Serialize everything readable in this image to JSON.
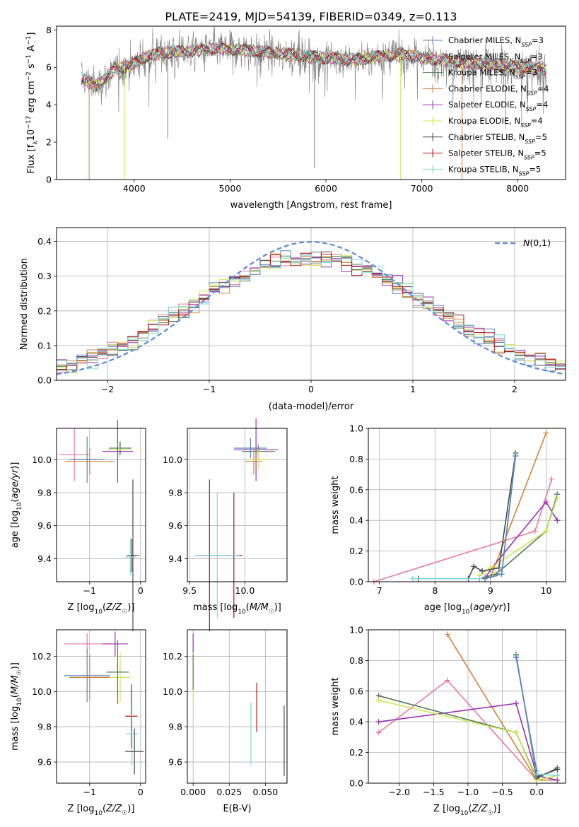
{
  "figure": {
    "title": "PLATE=2419, MJD=54139, FIBERID=0349, z=0.113"
  },
  "colors": {
    "CM": "#5b80be",
    "SM": "#e87b9c",
    "KM": "#4f7d57",
    "CE": "#d6813a",
    "SE": "#9a31b5",
    "KE": "#c9e84f",
    "CS": "#4a4a4a",
    "SS": "#b01515",
    "KS": "#7fd7d7",
    "normal": "#5b8bd6",
    "grid": "#b0b0b0",
    "spectrum": "#7f7f7f"
  },
  "legend_spectrum": [
    {
      "key": "CM",
      "base": "Chabrier MILES, N",
      "sub": "SSP",
      "tail": "=3"
    },
    {
      "key": "SM",
      "base": "Salpeter MILES, N",
      "sub": "SSP",
      "tail": "=3"
    },
    {
      "key": "KM",
      "base": "Kroupa MILES, N",
      "sub": "SSP",
      "tail": "=3"
    },
    {
      "key": "CE",
      "base": "Chabrier ELODIE, N",
      "sub": "SSP",
      "tail": "=4"
    },
    {
      "key": "SE",
      "base": "Salpeter ELODIE, N",
      "sub": "SSP",
      "tail": "=4"
    },
    {
      "key": "KE",
      "base": "Kroupa ELODIE, N",
      "sub": "SSP",
      "tail": "=4"
    },
    {
      "key": "CS",
      "base": "Chabrier STELIB, N",
      "sub": "SSP",
      "tail": "=5"
    },
    {
      "key": "SS",
      "base": "Salpeter STELIB, N",
      "sub": "SSP",
      "tail": "=5"
    },
    {
      "key": "KS",
      "base": "Kroupa STELIB, N",
      "sub": "SSP",
      "tail": "=5"
    }
  ],
  "chart_data": [
    {
      "id": "spectrum",
      "type": "line",
      "xlabel": "wavelength [Angstrom, rest frame]",
      "ylabel": "Flux [f_λ 10^-17 erg cm^-2 s^-1 A^-1]",
      "xlim": [
        3190,
        8500
      ],
      "ylim": [
        0,
        8.2
      ],
      "xticks": [
        4000,
        5000,
        6000,
        7000,
        8000
      ],
      "yticks": [
        0,
        2,
        4,
        6,
        8
      ],
      "data_range": [
        3450,
        8300
      ],
      "continuum": [
        [
          3450,
          5.4
        ],
        [
          3600,
          5.0
        ],
        [
          3700,
          5.4
        ],
        [
          3800,
          5.9
        ],
        [
          3950,
          6.1
        ],
        [
          4100,
          6.5
        ],
        [
          4300,
          6.8
        ],
        [
          4600,
          6.9
        ],
        [
          4900,
          7.0
        ],
        [
          5200,
          6.9
        ],
        [
          5600,
          6.7
        ],
        [
          6000,
          6.5
        ],
        [
          6300,
          6.4
        ],
        [
          6600,
          6.6
        ],
        [
          6800,
          6.7
        ],
        [
          7000,
          6.5
        ],
        [
          7400,
          6.3
        ],
        [
          7800,
          6.1
        ],
        [
          8300,
          5.9
        ]
      ],
      "dips": [
        {
          "x": 3530,
          "y": 0.0,
          "key": "CE"
        },
        {
          "x": 3900,
          "y": 0.0,
          "key": "KE"
        },
        {
          "x": 4350,
          "y": 2.2,
          "key": "spectrum"
        },
        {
          "x": 5880,
          "y": 0.6,
          "key": "spectrum"
        },
        {
          "x": 6780,
          "y": 0.0,
          "key": "KE"
        },
        {
          "x": 7420,
          "y": 0.0,
          "key": "CE"
        }
      ],
      "legend": "upper right"
    },
    {
      "id": "residuals",
      "type": "histogram",
      "xlabel": "(data-model)/error",
      "ylabel": "Normed distribution",
      "xlim": [
        -2.5,
        2.5
      ],
      "ylim": [
        0,
        0.44
      ],
      "xticks": [
        -2,
        -1,
        0,
        1,
        2
      ],
      "yticks": [
        0,
        0.1,
        0.2,
        0.3,
        0.4
      ],
      "bin_width": 0.1,
      "bin_start": -2.5,
      "normal_label": "N(0,1)",
      "normal_mean": 0,
      "normal_sigma": 1,
      "legend": "upper right"
    },
    {
      "id": "age_vs_Z",
      "type": "errorbar",
      "xlabel": "Z [log10(Z/Z☉)]",
      "ylabel": "age [log10(age/yr)]",
      "xlim": [
        -1.65,
        0.1
      ],
      "ylim": [
        9.26,
        10.19
      ],
      "xticks": [
        -1,
        0
      ],
      "yticks": [
        9.4,
        9.6,
        9.8,
        10.0
      ],
      "points": [
        {
          "key": "SM",
          "x": -1.3,
          "y": 10.03,
          "xerr": 0.3,
          "yerr": 0.16
        },
        {
          "key": "CM",
          "x": -1.05,
          "y": 10.0,
          "xerr": 0.35,
          "yerr": 0.14
        },
        {
          "key": "CE",
          "x": -1.0,
          "y": 9.99,
          "xerr": 0.5,
          "yerr": 0.08
        },
        {
          "key": "KM",
          "x": -0.4,
          "y": 10.07,
          "xerr": 0.22,
          "yerr": 0.04
        },
        {
          "key": "KE",
          "x": -0.42,
          "y": 10.06,
          "xerr": 0.24,
          "yerr": 0.05
        },
        {
          "key": "SE",
          "x": -0.45,
          "y": 10.05,
          "xerr": 0.3,
          "yerr": 0.19
        },
        {
          "key": "CS",
          "x": -0.15,
          "y": 9.42,
          "xerr": 0.12,
          "yerr": 0.46
        },
        {
          "key": "SS",
          "x": -0.17,
          "y": 9.42,
          "xerr": 0.06,
          "yerr": 0.1
        },
        {
          "key": "KS",
          "x": -0.2,
          "y": 9.41,
          "xerr": 0.1,
          "yerr": 0.11
        }
      ]
    },
    {
      "id": "age_vs_mass",
      "type": "errorbar",
      "xlabel": "mass [log10(M/M☉)]",
      "ylabel": "",
      "xlim": [
        9.48,
        10.38
      ],
      "ylim": [
        9.26,
        10.19
      ],
      "xticks": [
        9.5,
        10.0
      ],
      "yticks": [
        9.4,
        9.6,
        9.8,
        10.0
      ],
      "points": [
        {
          "key": "SE",
          "x": 10.1,
          "y": 10.06,
          "xerr": 0.2,
          "yerr": 0.19
        },
        {
          "key": "CM",
          "x": 10.05,
          "y": 10.07,
          "xerr": 0.15,
          "yerr": 0.06
        },
        {
          "key": "KM",
          "x": 10.12,
          "y": 10.05,
          "xerr": 0.15,
          "yerr": 0.04
        },
        {
          "key": "CE",
          "x": 10.08,
          "y": 9.99,
          "xerr": 0.08,
          "yerr": 0.08
        },
        {
          "key": "KE",
          "x": 10.12,
          "y": 10.0,
          "xerr": 0.1,
          "yerr": 0.06
        },
        {
          "key": "CS",
          "x": 9.68,
          "y": 9.42,
          "xerr": 0.13,
          "yerr": 0.46
        },
        {
          "key": "SS",
          "x": 9.9,
          "y": 9.42,
          "xerr": 0.08,
          "yerr": 0.38
        },
        {
          "key": "KS",
          "x": 9.75,
          "y": 9.42,
          "xerr": 0.2,
          "yerr": 0.38
        }
      ]
    },
    {
      "id": "mass_weight_vs_age",
      "type": "line",
      "xlabel": "age [log10(age/yr)]",
      "ylabel": "mass weight",
      "xlim": [
        6.8,
        10.35
      ],
      "ylim": [
        0,
        1
      ],
      "xticks": [
        7,
        8,
        9,
        10
      ],
      "yticks": [
        0,
        0.2,
        0.4,
        0.6,
        0.8,
        1.0
      ],
      "series": [
        {
          "key": "CE",
          "points": [
            [
              8.8,
              0.02
            ],
            [
              9.0,
              0.03
            ],
            [
              10.0,
              0.97
            ]
          ]
        },
        {
          "key": "SM",
          "points": [
            [
              6.9,
              0.0
            ],
            [
              9.8,
              0.33
            ],
            [
              10.1,
              0.67
            ]
          ]
        },
        {
          "key": "SE",
          "points": [
            [
              8.9,
              0.02
            ],
            [
              9.0,
              0.08
            ],
            [
              10.0,
              0.52
            ],
            [
              10.2,
              0.4
            ]
          ]
        },
        {
          "key": "KM",
          "points": [
            [
              8.9,
              0.03
            ],
            [
              9.1,
              0.05
            ],
            [
              10.0,
              0.33
            ],
            [
              10.2,
              0.57
            ]
          ]
        },
        {
          "key": "KE",
          "points": [
            [
              8.8,
              0.04
            ],
            [
              9.0,
              0.09
            ],
            [
              10.0,
              0.33
            ],
            [
              10.2,
              0.55
            ]
          ]
        },
        {
          "key": "CS",
          "points": [
            [
              7.7,
              0.02
            ],
            [
              8.6,
              0.02
            ],
            [
              8.7,
              0.1
            ],
            [
              8.85,
              0.07
            ],
            [
              9.15,
              0.09
            ],
            [
              9.45,
              0.84
            ]
          ]
        },
        {
          "key": "KS",
          "points": [
            [
              7.6,
              0.02
            ],
            [
              8.9,
              0.02
            ],
            [
              9.2,
              0.05
            ],
            [
              9.45,
              0.83
            ]
          ]
        },
        {
          "key": "CM",
          "points": [
            [
              8.9,
              0.02
            ],
            [
              9.2,
              0.05
            ],
            [
              9.45,
              0.82
            ]
          ]
        }
      ]
    },
    {
      "id": "mass_vs_Z",
      "type": "errorbar",
      "xlabel": "Z [log10(Z/Z☉)]",
      "ylabel": "mass [log10(M/M☉)]",
      "xlim": [
        -1.65,
        0.1
      ],
      "ylim": [
        9.48,
        10.35
      ],
      "xticks": [
        -1,
        0
      ],
      "yticks": [
        9.6,
        9.8,
        10.0,
        10.2
      ],
      "points": [
        {
          "key": "SM",
          "x": -1.05,
          "y": 10.27,
          "xerr": 0.45,
          "yerr": 0.06
        },
        {
          "key": "SE",
          "x": -0.5,
          "y": 10.27,
          "xerr": 0.25,
          "yerr": 0.07
        },
        {
          "key": "CM",
          "x": -1.05,
          "y": 10.09,
          "xerr": 0.45,
          "yerr": 0.15
        },
        {
          "key": "CE",
          "x": -1.0,
          "y": 10.08,
          "xerr": 0.4,
          "yerr": 0.13
        },
        {
          "key": "KE",
          "x": -0.4,
          "y": 10.08,
          "xerr": 0.2,
          "yerr": 0.14
        },
        {
          "key": "KM",
          "x": -0.45,
          "y": 10.11,
          "xerr": 0.22,
          "yerr": 0.18
        },
        {
          "key": "SS",
          "x": -0.18,
          "y": 9.86,
          "xerr": 0.12,
          "yerr": 0.18
        },
        {
          "key": "KS",
          "x": -0.17,
          "y": 9.76,
          "xerr": 0.12,
          "yerr": 0.18
        },
        {
          "key": "CS",
          "x": -0.12,
          "y": 9.66,
          "xerr": 0.18,
          "yerr": 0.13
        }
      ]
    },
    {
      "id": "mass_vs_EBV",
      "type": "errorbar",
      "xlabel": "E(B-V)",
      "ylabel": "",
      "xlim": [
        -0.004,
        0.065
      ],
      "ylim": [
        9.48,
        10.35
      ],
      "xticks": [
        0.0,
        0.025,
        0.05
      ],
      "xtick_labels": [
        "0.000",
        "0.025",
        "0.050"
      ],
      "yticks": [
        9.6,
        9.8,
        10.0,
        10.2
      ],
      "points": [
        {
          "key": "SE",
          "x": 0.0,
          "y": 10.27,
          "xerr": 0,
          "yerr": 0.06
        },
        {
          "key": "KE",
          "x": 0.0,
          "y": 10.08,
          "xerr": 0,
          "yerr": 0.14
        },
        {
          "key": "KM",
          "x": 0.0,
          "y": 10.11,
          "xerr": 0,
          "yerr": 0.1
        },
        {
          "key": "SS",
          "x": 0.044,
          "y": 9.91,
          "xerr": 0,
          "yerr": 0.14
        },
        {
          "key": "KS",
          "x": 0.04,
          "y": 9.76,
          "xerr": 0,
          "yerr": 0.18
        },
        {
          "key": "CS",
          "x": 0.063,
          "y": 9.72,
          "xerr": 0,
          "yerr": 0.2
        }
      ]
    },
    {
      "id": "mass_weight_vs_Z",
      "type": "line",
      "xlabel": "Z [log10(Z/Z☉)]",
      "ylabel": "mass weight",
      "xlim": [
        -2.45,
        0.42
      ],
      "ylim": [
        0,
        1
      ],
      "xticks": [
        -2.0,
        -1.5,
        -1.0,
        -0.5,
        0.0
      ],
      "yticks": [
        0,
        0.2,
        0.4,
        0.6,
        0.8,
        1.0
      ],
      "series": [
        {
          "key": "CE",
          "points": [
            [
              -1.3,
              0.97
            ],
            [
              0.0,
              0.02
            ],
            [
              0.3,
              0.02
            ]
          ]
        },
        {
          "key": "SM",
          "points": [
            [
              -2.3,
              0.33
            ],
            [
              -1.3,
              0.67
            ],
            [
              0.0,
              0.02
            ]
          ]
        },
        {
          "key": "SE",
          "points": [
            [
              -2.3,
              0.4
            ],
            [
              -0.3,
              0.52
            ],
            [
              0.0,
              0.05
            ],
            [
              0.3,
              0.02
            ]
          ]
        },
        {
          "key": "KM",
          "points": [
            [
              -2.3,
              0.57
            ],
            [
              -0.3,
              0.33
            ],
            [
              0.0,
              0.03
            ],
            [
              0.3,
              0.1
            ]
          ]
        },
        {
          "key": "KE",
          "points": [
            [
              -2.3,
              0.54
            ],
            [
              -0.3,
              0.33
            ],
            [
              0.0,
              0.02
            ],
            [
              0.3,
              0.05
            ]
          ]
        },
        {
          "key": "CS",
          "points": [
            [
              -0.3,
              0.84
            ],
            [
              0.0,
              0.04
            ],
            [
              0.3,
              0.09
            ]
          ]
        },
        {
          "key": "KS",
          "points": [
            [
              -0.3,
              0.83
            ],
            [
              0.0,
              0.06
            ],
            [
              0.3,
              0.05
            ]
          ]
        },
        {
          "key": "CM",
          "points": [
            [
              -0.3,
              0.82
            ],
            [
              0.0,
              0.08
            ]
          ]
        }
      ]
    }
  ]
}
